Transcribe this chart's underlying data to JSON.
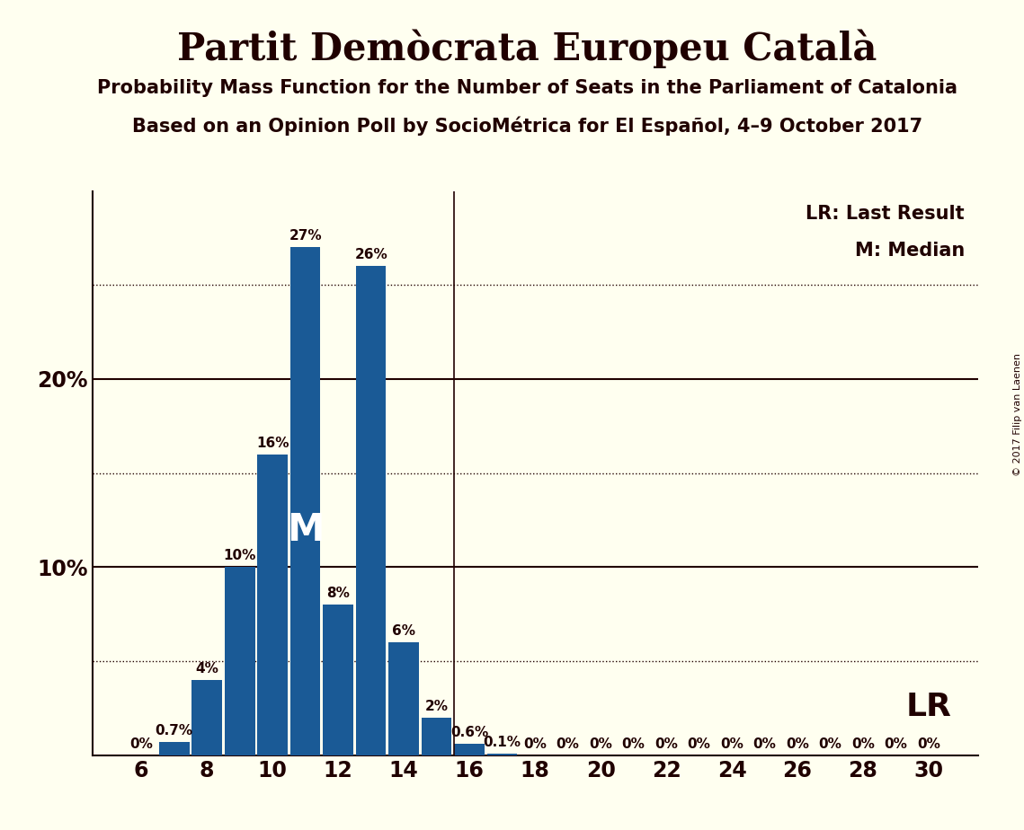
{
  "title": "Partit Demòcrata Europeu Català",
  "subtitle1": "Probability Mass Function for the Number of Seats in the Parliament of Catalonia",
  "subtitle2": "Based on an Opinion Poll by SocioMétrica for El Español, 4–9 October 2017",
  "copyright": "© 2017 Filip van Laenen",
  "legend_lr": "LR: Last Result",
  "legend_m": "M: Median",
  "seats": [
    6,
    7,
    8,
    9,
    10,
    11,
    12,
    13,
    14,
    15,
    16,
    17,
    18,
    19,
    20,
    21,
    22,
    23,
    24,
    25,
    26,
    27,
    28,
    29,
    30
  ],
  "probabilities": [
    0.0,
    0.7,
    4.0,
    10.0,
    16.0,
    27.0,
    8.0,
    26.0,
    6.0,
    2.0,
    0.6,
    0.1,
    0.0,
    0.0,
    0.0,
    0.0,
    0.0,
    0.0,
    0.0,
    0.0,
    0.0,
    0.0,
    0.0,
    0.0,
    0.0
  ],
  "bar_color": "#1a5a96",
  "background_color": "#fffff0",
  "text_color": "#200000",
  "median_seat": 11,
  "lr_seat": 16,
  "ylim_max": 30,
  "dotted_lines": [
    5,
    15,
    25
  ],
  "solid_lines": [
    10,
    20
  ],
  "bar_labels": [
    "0%",
    "0.7%",
    "4%",
    "10%",
    "16%",
    "27%",
    "8%",
    "26%",
    "6%",
    "2%",
    "0.6%",
    "0.1%",
    "0%",
    "0%",
    "0%",
    "0%",
    "0%",
    "0%",
    "0%",
    "0%",
    "0%",
    "0%",
    "0%",
    "0%",
    "0%"
  ],
  "title_fontsize": 30,
  "subtitle_fontsize": 15,
  "label_fontsize": 11,
  "axis_fontsize": 17,
  "legend_fontsize": 15,
  "median_fontsize": 30,
  "lr_fontsize": 26
}
